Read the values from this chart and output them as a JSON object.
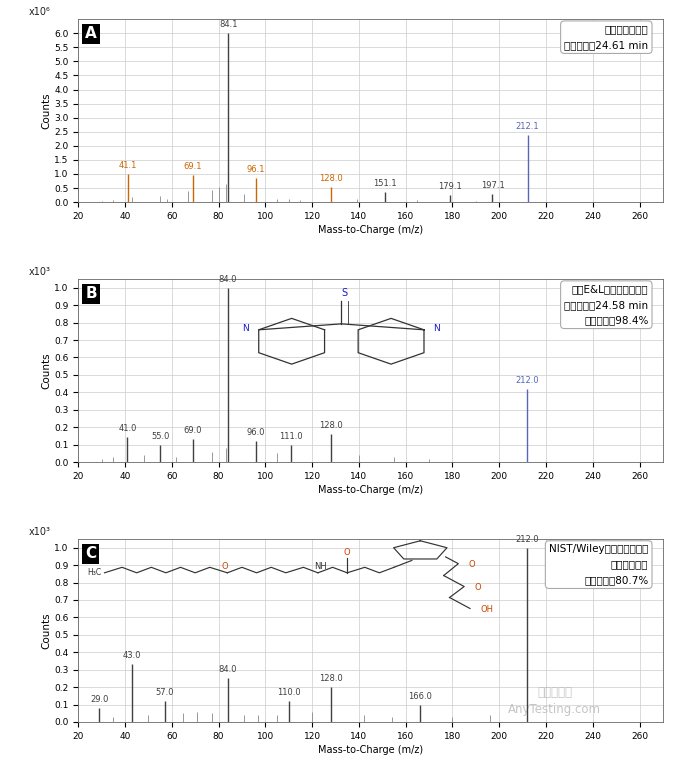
{
  "panel_A": {
    "label": "A",
    "ylabel": "Counts",
    "yunits": "x10⁶",
    "xlim": [
      20,
      270
    ],
    "ylim": [
      0,
      6.5
    ],
    "yticks": [
      0,
      0.5,
      1.0,
      1.5,
      2.0,
      2.5,
      3.0,
      3.5,
      4.0,
      4.5,
      5.0,
      5.5,
      6.0
    ],
    "annotation_line1": "检测到未知物谱",
    "annotation_line2": "保留时间：24.61 min",
    "annotation_line3": "",
    "peaks": [
      {
        "mz": 41.1,
        "intensity": 1.0,
        "color": "#cc6600",
        "label": "41.1",
        "label_color": "#cc6600"
      },
      {
        "mz": 69.1,
        "intensity": 0.95,
        "color": "#cc6600",
        "label": "69.1",
        "label_color": "#cc6600"
      },
      {
        "mz": 84.1,
        "intensity": 6.0,
        "color": "#404040",
        "label": "84.1",
        "label_color": "#404040"
      },
      {
        "mz": 96.1,
        "intensity": 0.85,
        "color": "#cc6600",
        "label": "96.1",
        "label_color": "#cc6600"
      },
      {
        "mz": 128.0,
        "intensity": 0.55,
        "color": "#cc6600",
        "label": "128.0",
        "label_color": "#cc6600"
      },
      {
        "mz": 151.1,
        "intensity": 0.35,
        "color": "#404040",
        "label": "151.1",
        "label_color": "#404040"
      },
      {
        "mz": 179.1,
        "intensity": 0.25,
        "color": "#404040",
        "label": "179.1",
        "label_color": "#404040"
      },
      {
        "mz": 197.1,
        "intensity": 0.3,
        "color": "#404040",
        "label": "197.1",
        "label_color": "#404040"
      },
      {
        "mz": 212.1,
        "intensity": 2.4,
        "color": "#5566bb",
        "label": "212.1",
        "label_color": "#5566bb"
      }
    ],
    "small_peaks": [
      {
        "mz": 30,
        "intensity": 0.05
      },
      {
        "mz": 35,
        "intensity": 0.08
      },
      {
        "mz": 43,
        "intensity": 0.18
      },
      {
        "mz": 55,
        "intensity": 0.22
      },
      {
        "mz": 58,
        "intensity": 0.12
      },
      {
        "mz": 67,
        "intensity": 0.38
      },
      {
        "mz": 77,
        "intensity": 0.42
      },
      {
        "mz": 80,
        "intensity": 0.55
      },
      {
        "mz": 83,
        "intensity": 0.65
      },
      {
        "mz": 91,
        "intensity": 0.28
      },
      {
        "mz": 105,
        "intensity": 0.12
      },
      {
        "mz": 110,
        "intensity": 0.1
      },
      {
        "mz": 115,
        "intensity": 0.08
      },
      {
        "mz": 139,
        "intensity": 0.12
      },
      {
        "mz": 165,
        "intensity": 0.07
      },
      {
        "mz": 190,
        "intensity": 0.05
      }
    ]
  },
  "panel_B": {
    "label": "B",
    "ylabel": "Counts",
    "yunits": "x10³",
    "xlim": [
      20,
      270
    ],
    "ylim": [
      0,
      1.05
    ],
    "yticks": [
      0,
      0.1,
      0.2,
      0.3,
      0.4,
      0.5,
      0.6,
      0.7,
      0.8,
      0.9,
      1.0
    ],
    "annotation_line1": "内部E&L数据库最佳匹配",
    "annotation_line2": "保留时间：24.58 min",
    "annotation_line3": "匹配分数：98.4%",
    "peaks": [
      {
        "mz": 41.0,
        "intensity": 0.145,
        "color": "#404040",
        "label": "41.0",
        "label_color": "#404040"
      },
      {
        "mz": 55.0,
        "intensity": 0.095,
        "color": "#404040",
        "label": "55.0",
        "label_color": "#404040"
      },
      {
        "mz": 69.0,
        "intensity": 0.13,
        "color": "#404040",
        "label": "69.0",
        "label_color": "#404040"
      },
      {
        "mz": 84.0,
        "intensity": 1.0,
        "color": "#404040",
        "label": "84.0",
        "label_color": "#404040"
      },
      {
        "mz": 96.0,
        "intensity": 0.12,
        "color": "#404040",
        "label": "96.0",
        "label_color": "#404040"
      },
      {
        "mz": 111.0,
        "intensity": 0.1,
        "color": "#404040",
        "label": "111.0",
        "label_color": "#404040"
      },
      {
        "mz": 128.0,
        "intensity": 0.16,
        "color": "#404040",
        "label": "128.0",
        "label_color": "#404040"
      },
      {
        "mz": 212.0,
        "intensity": 0.42,
        "color": "#5566bb",
        "label": "212.0",
        "label_color": "#5566bb"
      }
    ],
    "small_peaks": [
      {
        "mz": 30,
        "intensity": 0.02
      },
      {
        "mz": 35,
        "intensity": 0.03
      },
      {
        "mz": 48,
        "intensity": 0.04
      },
      {
        "mz": 62,
        "intensity": 0.03
      },
      {
        "mz": 77,
        "intensity": 0.06
      },
      {
        "mz": 83,
        "intensity": 0.08
      },
      {
        "mz": 105,
        "intensity": 0.05
      },
      {
        "mz": 140,
        "intensity": 0.04
      },
      {
        "mz": 155,
        "intensity": 0.03
      },
      {
        "mz": 170,
        "intensity": 0.02
      }
    ]
  },
  "panel_C": {
    "label": "C",
    "ylabel": "Counts",
    "yunits": "x10³",
    "xlim": [
      20,
      270
    ],
    "ylim": [
      0,
      1.05
    ],
    "yticks": [
      0,
      0.1,
      0.2,
      0.3,
      0.4,
      0.5,
      0.6,
      0.7,
      0.8,
      0.9,
      1.0
    ],
    "annotation_line1": "NIST/Wiley数据库最佳匹配",
    "annotation_line2": "保留时间：无",
    "annotation_line3": "匹配分数：80.7%",
    "peaks": [
      {
        "mz": 29.0,
        "intensity": 0.08,
        "color": "#404040",
        "label": "29.0",
        "label_color": "#404040"
      },
      {
        "mz": 43.0,
        "intensity": 0.33,
        "color": "#404040",
        "label": "43.0",
        "label_color": "#404040"
      },
      {
        "mz": 57.0,
        "intensity": 0.12,
        "color": "#404040",
        "label": "57.0",
        "label_color": "#404040"
      },
      {
        "mz": 84.0,
        "intensity": 0.25,
        "color": "#404040",
        "label": "84.0",
        "label_color": "#404040"
      },
      {
        "mz": 110.0,
        "intensity": 0.12,
        "color": "#404040",
        "label": "110.0",
        "label_color": "#404040"
      },
      {
        "mz": 128.0,
        "intensity": 0.2,
        "color": "#404040",
        "label": "128.0",
        "label_color": "#404040"
      },
      {
        "mz": 166.0,
        "intensity": 0.1,
        "color": "#404040",
        "label": "166.0",
        "label_color": "#404040"
      },
      {
        "mz": 212.0,
        "intensity": 1.0,
        "color": "#404040",
        "label": "212.0",
        "label_color": "#404040"
      }
    ],
    "small_peaks": [
      {
        "mz": 35,
        "intensity": 0.03
      },
      {
        "mz": 50,
        "intensity": 0.04
      },
      {
        "mz": 65,
        "intensity": 0.05
      },
      {
        "mz": 71,
        "intensity": 0.06
      },
      {
        "mz": 77,
        "intensity": 0.05
      },
      {
        "mz": 91,
        "intensity": 0.04
      },
      {
        "mz": 97,
        "intensity": 0.04
      },
      {
        "mz": 105,
        "intensity": 0.04
      },
      {
        "mz": 120,
        "intensity": 0.06
      },
      {
        "mz": 142,
        "intensity": 0.04
      },
      {
        "mz": 154,
        "intensity": 0.03
      },
      {
        "mz": 180,
        "intensity": 0.03
      },
      {
        "mz": 196,
        "intensity": 0.04
      }
    ]
  },
  "xlabel": "Mass-to-Charge (m/z)",
  "bg_color": "#ffffff",
  "grid_color": "#cccccc",
  "watermark_line1": "嘉峪检测网",
  "watermark_line2": "AnyTesting.com"
}
